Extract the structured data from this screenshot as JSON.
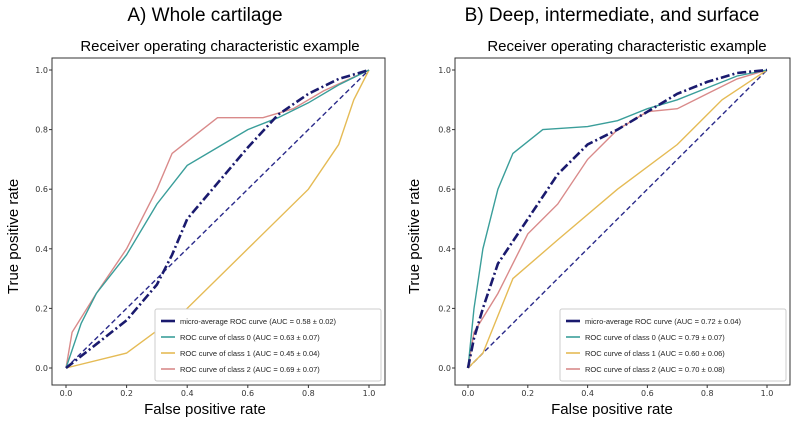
{
  "chart_data": [
    {
      "type": "line",
      "panel_title": "A) Whole cartilage",
      "title": "Receiver operating characteristic example",
      "xlabel": "False positive rate",
      "ylabel": "True positive rate",
      "xlim": [
        0,
        1
      ],
      "ylim": [
        0,
        1
      ],
      "xticks": [
        "0.0",
        "0.2",
        "0.4",
        "0.6",
        "0.8",
        "1.0"
      ],
      "yticks": [
        "0.0",
        "0.2",
        "0.4",
        "0.6",
        "0.8",
        "1.0"
      ],
      "legend_position": "lower-right",
      "series": [
        {
          "name": "micro-average ROC curve (AUC = 0.58 ± 0.02)",
          "color": "#1a1a6e",
          "style": "dashdot",
          "x": [
            0,
            0.1,
            0.2,
            0.3,
            0.35,
            0.4,
            0.5,
            0.6,
            0.7,
            0.8,
            0.9,
            1
          ],
          "y": [
            0,
            0.08,
            0.16,
            0.28,
            0.38,
            0.5,
            0.62,
            0.74,
            0.85,
            0.92,
            0.97,
            1
          ]
        },
        {
          "name": "ROC curve of class 0 (AUC = 0.63 ± 0.07)",
          "color": "#3a9e9a",
          "style": "solid",
          "x": [
            0,
            0.05,
            0.1,
            0.2,
            0.3,
            0.4,
            0.5,
            0.6,
            0.7,
            0.8,
            0.9,
            1
          ],
          "y": [
            0,
            0.15,
            0.25,
            0.38,
            0.55,
            0.68,
            0.74,
            0.8,
            0.84,
            0.89,
            0.95,
            1
          ]
        },
        {
          "name": "ROC curve of class 1 (AUC = 0.45 ± 0.04)",
          "color": "#e5bb55",
          "style": "solid",
          "x": [
            0,
            0.2,
            0.4,
            0.6,
            0.8,
            0.9,
            0.95,
            1
          ],
          "y": [
            0,
            0.05,
            0.2,
            0.4,
            0.6,
            0.75,
            0.9,
            1
          ]
        },
        {
          "name": "ROC curve of class 2 (AUC = 0.69 ± 0.07)",
          "color": "#d98a8a",
          "style": "solid",
          "x": [
            0,
            0.02,
            0.1,
            0.2,
            0.3,
            0.35,
            0.45,
            0.5,
            0.65,
            0.75,
            0.85,
            1
          ],
          "y": [
            0,
            0.12,
            0.25,
            0.4,
            0.6,
            0.72,
            0.8,
            0.84,
            0.84,
            0.87,
            0.93,
            1
          ]
        },
        {
          "name": "chance",
          "color": "#2a2a8a",
          "style": "dashed",
          "legend": false,
          "x": [
            0,
            1
          ],
          "y": [
            0,
            1
          ]
        }
      ]
    },
    {
      "type": "line",
      "panel_title": "B) Deep, intermediate, and surface",
      "title": "Receiver operating characteristic example",
      "xlabel": "False positive rate",
      "ylabel": "True positive rate",
      "xlim": [
        0,
        1
      ],
      "ylim": [
        0,
        1
      ],
      "xticks": [
        "0.0",
        "0.2",
        "0.4",
        "0.6",
        "0.8",
        "1.0"
      ],
      "yticks": [
        "0.0",
        "0.2",
        "0.4",
        "0.6",
        "0.8",
        "1.0"
      ],
      "legend_position": "lower-right",
      "series": [
        {
          "name": "micro-average ROC curve (AUC = 0.72 ± 0.04)",
          "color": "#1a1a6e",
          "style": "dashdot",
          "x": [
            0,
            0.02,
            0.05,
            0.1,
            0.2,
            0.3,
            0.4,
            0.5,
            0.6,
            0.7,
            0.8,
            0.9,
            1
          ],
          "y": [
            0,
            0.1,
            0.2,
            0.35,
            0.5,
            0.65,
            0.75,
            0.8,
            0.86,
            0.92,
            0.96,
            0.99,
            1
          ]
        },
        {
          "name": "ROC curve of class 0 (AUC = 0.79 ± 0.07)",
          "color": "#3a9e9a",
          "style": "solid",
          "x": [
            0,
            0.02,
            0.05,
            0.1,
            0.15,
            0.25,
            0.4,
            0.5,
            0.6,
            0.7,
            0.8,
            0.9,
            1
          ],
          "y": [
            0,
            0.2,
            0.4,
            0.6,
            0.72,
            0.8,
            0.81,
            0.83,
            0.87,
            0.9,
            0.94,
            0.98,
            1
          ]
        },
        {
          "name": "ROC curve of class 1 (AUC = 0.60 ± 0.06)",
          "color": "#e5bb55",
          "style": "solid",
          "x": [
            0,
            0.05,
            0.15,
            0.3,
            0.5,
            0.7,
            0.85,
            1
          ],
          "y": [
            0,
            0.05,
            0.3,
            0.43,
            0.6,
            0.75,
            0.9,
            1
          ]
        },
        {
          "name": "ROC curve of class 2 (AUC = 0.70 ± 0.08)",
          "color": "#d98a8a",
          "style": "solid",
          "x": [
            0,
            0.02,
            0.1,
            0.2,
            0.3,
            0.4,
            0.5,
            0.6,
            0.7,
            0.8,
            0.9,
            1
          ],
          "y": [
            0,
            0.12,
            0.25,
            0.45,
            0.55,
            0.7,
            0.8,
            0.86,
            0.87,
            0.92,
            0.97,
            1
          ]
        },
        {
          "name": "chance",
          "color": "#2a2a8a",
          "style": "dashed",
          "legend": false,
          "x": [
            0,
            1
          ],
          "y": [
            0,
            1
          ]
        }
      ]
    }
  ]
}
